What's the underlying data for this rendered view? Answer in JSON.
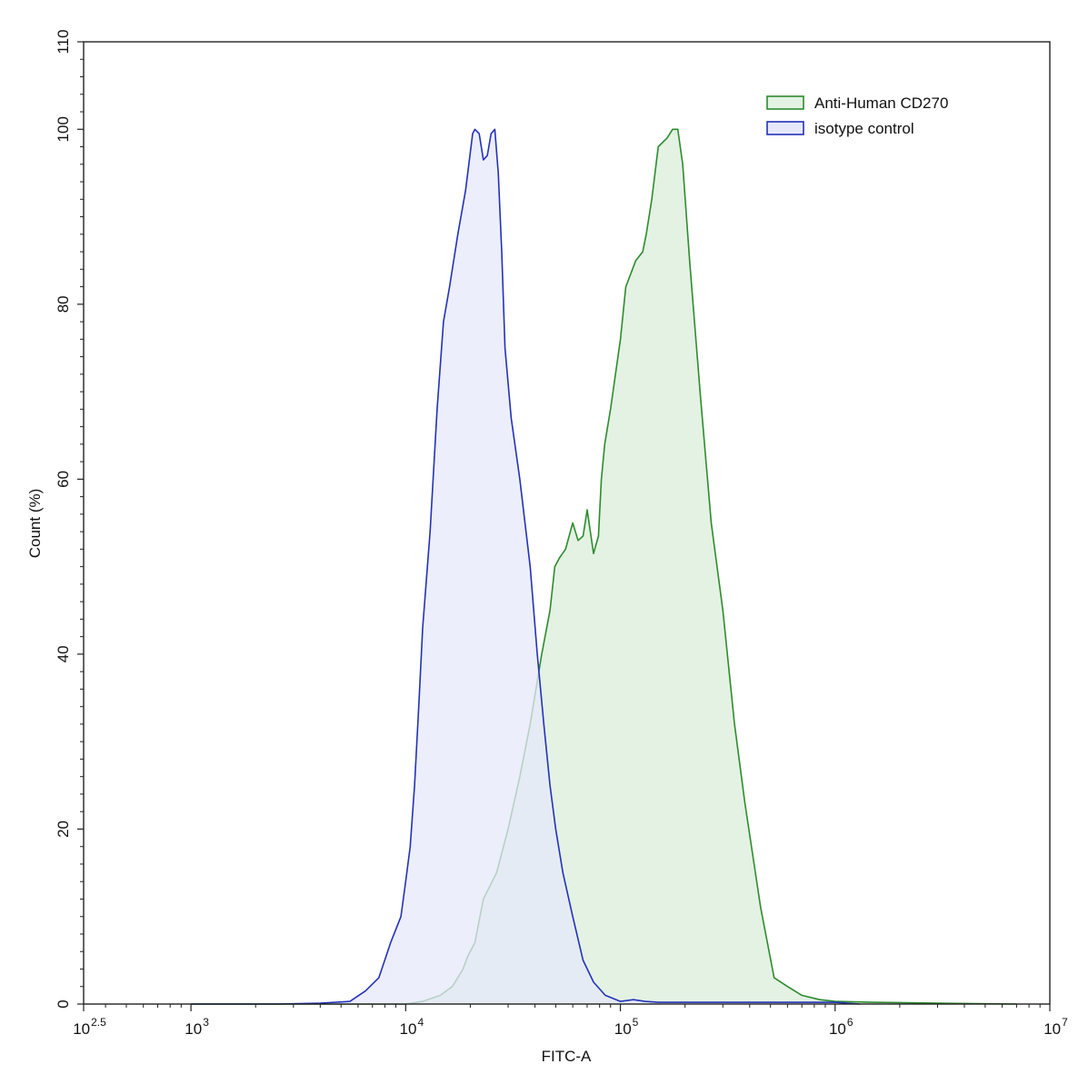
{
  "chart_data": {
    "type": "area",
    "xlabel": "FITC-A",
    "ylabel": "Count  (%)",
    "x_scale": "log10",
    "xlim": [
      316.23,
      10000000
    ],
    "ylim": [
      0,
      110
    ],
    "grid": false,
    "legend_position": "top-right",
    "x_ticks": [
      {
        "value": 316.23,
        "base": "10",
        "exp": "2.5"
      },
      {
        "value": 1000,
        "base": "10",
        "exp": "3"
      },
      {
        "value": 10000,
        "base": "10",
        "exp": "4"
      },
      {
        "value": 100000,
        "base": "10",
        "exp": "5"
      },
      {
        "value": 1000000,
        "base": "10",
        "exp": "6"
      },
      {
        "value": 10000000,
        "base": "10",
        "exp": "7"
      }
    ],
    "y_ticks": [
      {
        "value": 0,
        "label": "0"
      },
      {
        "value": 20,
        "label": "20"
      },
      {
        "value": 40,
        "label": "40"
      },
      {
        "value": 60,
        "label": "60"
      },
      {
        "value": 80,
        "label": "80"
      },
      {
        "value": 100,
        "label": "100"
      },
      {
        "value": 110,
        "label": "110"
      }
    ],
    "series": [
      {
        "name": "Anti-Human CD270",
        "color": "#2e8b2e",
        "fill": "#e3f2e3",
        "x": [
          1000,
          10000,
          12000,
          14500,
          16500,
          18500,
          19500,
          21000,
          23000,
          26500,
          30000,
          34000,
          38000,
          43000,
          47000,
          49500,
          52000,
          55500,
          60000,
          63500,
          67000,
          70000,
          75000,
          79000,
          81500,
          84500,
          90000,
          100000,
          106000,
          118000,
          127000,
          132000,
          140000,
          150000,
          165000,
          175000,
          185000,
          195000,
          210000,
          235000,
          265000,
          300000,
          340000,
          380000,
          450000,
          520000,
          600000,
          700000,
          850000,
          1000000,
          1500000,
          3000000,
          7000000
        ],
        "y": [
          0,
          0,
          0.3,
          1,
          2,
          4,
          5.5,
          7,
          12,
          15,
          20,
          26,
          32,
          40,
          45,
          50,
          51,
          52,
          55,
          53,
          53.5,
          56.5,
          51.5,
          53.5,
          60,
          64,
          68,
          76,
          82,
          85,
          86,
          88,
          92,
          98,
          99,
          100,
          100,
          96,
          85,
          70,
          55,
          45,
          32,
          23,
          11,
          3,
          2,
          1,
          0.5,
          0.3,
          0.2,
          0.1,
          0
        ],
        "shown": "curve"
      },
      {
        "name": "isotype control",
        "color": "#2332b8",
        "fill": "#e6e8fa",
        "x": [
          1000,
          2500,
          4000,
          5500,
          6500,
          7500,
          8500,
          9500,
          10000,
          10500,
          11000,
          11500,
          12000,
          13000,
          14000,
          15000,
          16000,
          17500,
          19000,
          20500,
          21000,
          22000,
          23000,
          24000,
          25000,
          26000,
          27000,
          28000,
          29000,
          31000,
          34000,
          38000,
          41000,
          44000,
          47000,
          50000,
          54000,
          60000,
          67000,
          75000,
          85000,
          100000,
          115000,
          130000,
          150000,
          200000,
          400000,
          1000000,
          1300000
        ],
        "y": [
          0,
          0,
          0.1,
          0.3,
          1.5,
          3,
          7,
          10,
          14,
          18,
          25,
          34,
          43,
          54,
          68,
          78,
          82,
          88,
          93,
          99.5,
          100,
          99.5,
          96.5,
          97,
          99.5,
          100,
          95,
          86,
          75,
          67,
          60,
          50,
          40,
          32,
          25,
          20,
          15,
          10,
          5,
          2.5,
          1,
          0.3,
          0.5,
          0.3,
          0.2,
          0.2,
          0.2,
          0.2,
          0
        ]
      }
    ]
  }
}
